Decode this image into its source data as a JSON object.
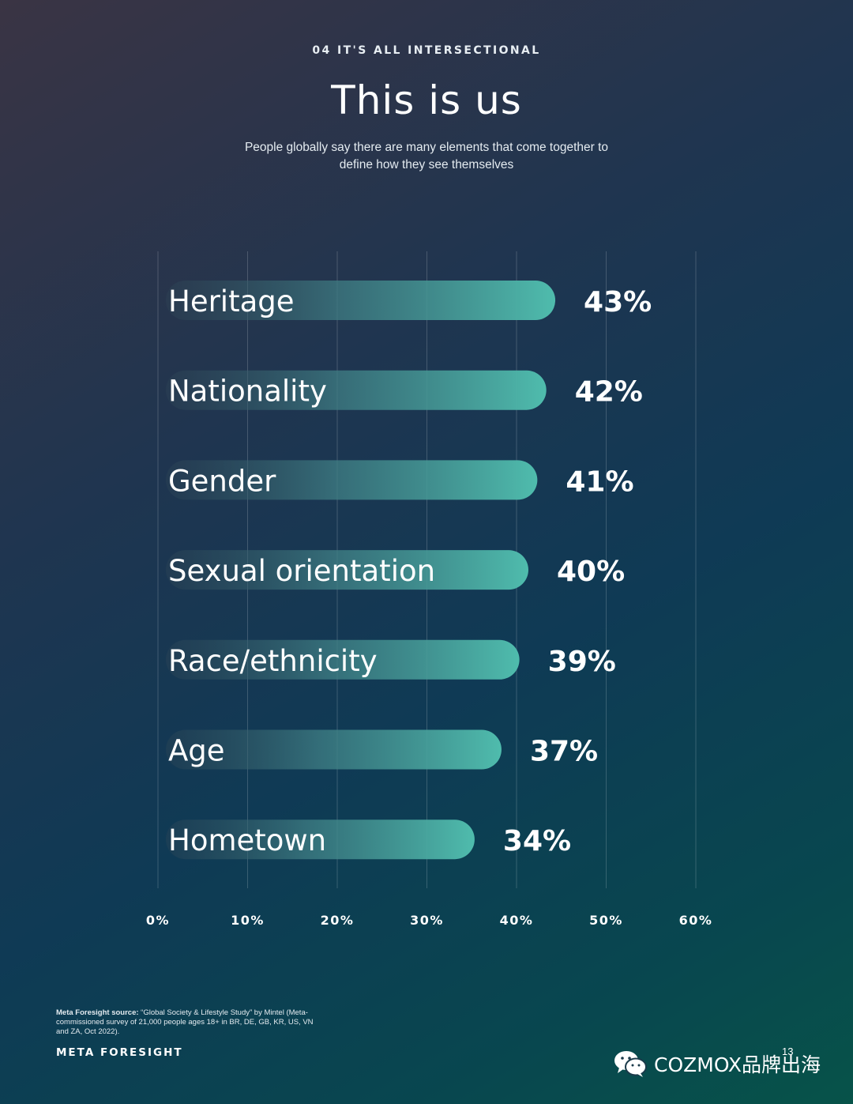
{
  "header": {
    "eyebrow": "04 IT'S ALL INTERSECTIONAL",
    "title": "This is us",
    "subtitle": "People globally say there are many elements that come together to define how they see themselves"
  },
  "chart_data": {
    "type": "bar",
    "orientation": "horizontal",
    "categories": [
      "Heritage",
      "Nationality",
      "Gender",
      "Sexual orientation",
      "Race/ethnicity",
      "Age",
      "Hometown"
    ],
    "values": [
      43,
      42,
      41,
      40,
      39,
      37,
      34
    ],
    "value_labels": [
      "43%",
      "42%",
      "41%",
      "40%",
      "39%",
      "37%",
      "34%"
    ],
    "xlim": [
      0,
      60
    ],
    "x_ticks": [
      0,
      10,
      20,
      30,
      40,
      50,
      60
    ],
    "x_tick_labels": [
      "0%",
      "10%",
      "20%",
      "30%",
      "40%",
      "50%",
      "60%"
    ],
    "grid": true,
    "bar_gradient": [
      "#2f4656",
      "#4fbcad"
    ]
  },
  "footer": {
    "source_label": "Meta Foresight source:",
    "source_text": "“Global Society & Lifestyle Study” by Mintel (Meta-commissioned survey of 21,000 people ages 18+ in BR, DE, GB, KR, US, VN and ZA, Oct 2022).",
    "brand": "META FORESIGHT",
    "page_number": "13",
    "watermark": "COZMOX品牌出海",
    "watermark_icon": "wechat-icon"
  }
}
